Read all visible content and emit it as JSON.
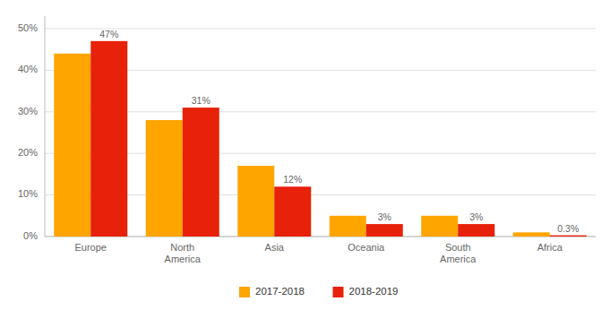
{
  "chart_data": {
    "type": "bar",
    "categories": [
      "Europe",
      "North\nAmerica",
      "Asia",
      "Oceania",
      "South\nAmerica",
      "Africa"
    ],
    "series": [
      {
        "name": "2017-2018",
        "color": "#FFA500",
        "values": [
          44,
          28,
          17,
          5,
          5,
          1
        ]
      },
      {
        "name": "2018-2019",
        "color": "#E8210A",
        "values": [
          47,
          31,
          12,
          3,
          3,
          0.3
        ],
        "data_labels": true,
        "value_labels": [
          "47%",
          "31%",
          "12%",
          "3%",
          "3%",
          "0.3%"
        ]
      }
    ],
    "ylim": [
      0,
      53
    ],
    "yticks": [
      {
        "value": 0,
        "label": "0%"
      },
      {
        "value": 10,
        "label": "10%"
      },
      {
        "value": 20,
        "label": "20%"
      },
      {
        "value": 30,
        "label": "30%"
      },
      {
        "value": 40,
        "label": "40%"
      },
      {
        "value": 50,
        "label": "50%"
      }
    ],
    "grid": true,
    "legend": "bottom"
  }
}
